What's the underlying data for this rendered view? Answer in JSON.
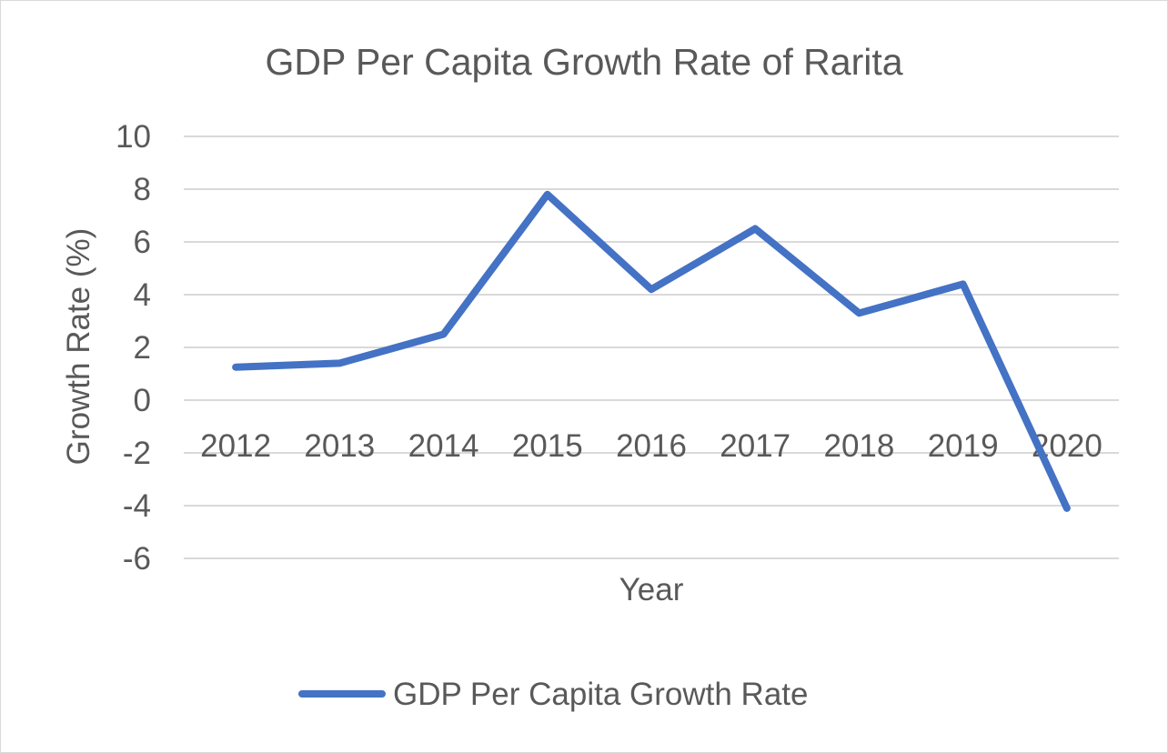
{
  "chart_data": {
    "type": "line",
    "title": "GDP Per Capita Growth Rate of Rarita",
    "xlabel": "Year",
    "ylabel": "Growth Rate (%)",
    "categories": [
      "2012",
      "2013",
      "2014",
      "2015",
      "2016",
      "2017",
      "2018",
      "2019",
      "2020"
    ],
    "series": [
      {
        "name": "GDP Per Capita Growth Rate",
        "values": [
          1.25,
          1.4,
          2.5,
          7.8,
          4.2,
          6.5,
          3.3,
          4.4,
          -4.1
        ],
        "color": "#4472c4"
      }
    ],
    "ylim": [
      -6,
      10
    ],
    "yticks": [
      "10",
      "8",
      "6",
      "4",
      "2",
      "0",
      "-2",
      "-4",
      "-6"
    ],
    "grid": true,
    "legend_position": "bottom"
  }
}
